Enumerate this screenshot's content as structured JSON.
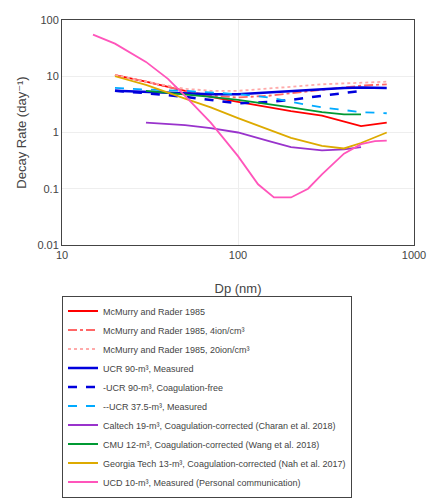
{
  "chart_data": {
    "type": "line",
    "xlabel": "Dp (nm)",
    "ylabel": "Decay Rate (day⁻¹)",
    "log": true,
    "xlim": [
      10,
      1000
    ],
    "ylim": [
      0.01,
      100
    ],
    "xticks": [
      10,
      100,
      1000
    ],
    "yticks": [
      0.01,
      0.1,
      1,
      10,
      100
    ],
    "grid": true,
    "legend": "bottom",
    "series": [
      {
        "name": "McMurry and Rader 1985",
        "color": "#ff0000",
        "line_style": "solid",
        "x": [
          20,
          30,
          50,
          70,
          100,
          150,
          200,
          300,
          500,
          700
        ],
        "values": [
          10.5,
          8.0,
          5.5,
          4.3,
          3.5,
          2.8,
          2.4,
          2.0,
          1.3,
          1.5
        ]
      },
      {
        "name": "McMurry and Rader 1985, 4ion/cm³",
        "color": "#ff6666",
        "line_style": "dashdot",
        "x": [
          20,
          30,
          50,
          70,
          100,
          150,
          200,
          300,
          500,
          700
        ],
        "values": [
          10.5,
          8.0,
          5.5,
          4.5,
          4.2,
          4.5,
          5.0,
          5.8,
          6.8,
          7.2
        ]
      },
      {
        "name": "McMurry and Rader 1985, 20ion/cm³",
        "color": "#ffaaaa",
        "line_style": "dotted",
        "x": [
          20,
          30,
          50,
          70,
          100,
          150,
          200,
          300,
          500,
          700
        ],
        "values": [
          10.5,
          8.0,
          6.0,
          5.5,
          5.5,
          6.0,
          6.5,
          7.2,
          7.8,
          8.0
        ]
      },
      {
        "name": "UCR 90-m³, Measured",
        "color": "#0000dd",
        "line_style": "solid",
        "x": [
          20,
          30,
          50,
          70,
          100,
          150,
          200,
          300,
          400,
          500,
          700
        ],
        "values": [
          5.5,
          5.3,
          5.0,
          4.8,
          4.8,
          5.2,
          5.5,
          6.0,
          6.2,
          6.3,
          6.2
        ]
      },
      {
        "name": "-UCR 90-m³, Coagulation-free",
        "color": "#0000dd",
        "line_style": "dashed",
        "x": [
          20,
          30,
          50,
          70,
          100,
          150,
          200,
          300,
          400,
          500
        ],
        "values": [
          5.5,
          5.0,
          4.3,
          3.8,
          3.3,
          3.5,
          3.8,
          4.5,
          5.0,
          5.5
        ]
      },
      {
        "name": "--UCR 37.5-m³, Measured",
        "color": "#00aaff",
        "line_style": "dashed",
        "x": [
          20,
          30,
          50,
          70,
          100,
          150,
          200,
          300,
          400,
          500,
          700
        ],
        "values": [
          6.2,
          5.8,
          5.5,
          5.2,
          4.8,
          4.2,
          3.5,
          2.8,
          2.5,
          2.3,
          2.2
        ]
      },
      {
        "name": "Caltech 19-m³, Coagulation-corrected (Charan et al. 2018)",
        "color": "#9933cc",
        "line_style": "solid",
        "x": [
          30,
          50,
          70,
          100,
          150,
          200,
          300,
          400,
          500
        ],
        "values": [
          1.5,
          1.35,
          1.2,
          1.0,
          0.7,
          0.55,
          0.48,
          0.5,
          0.55
        ]
      },
      {
        "name": "CMU 12-m³, Coagulation-corrected (Wang et al. 2018)",
        "color": "#009933",
        "line_style": "solid",
        "x": [
          30,
          50,
          70,
          100,
          150,
          200,
          300,
          400,
          500
        ],
        "values": [
          5.5,
          4.8,
          4.3,
          3.8,
          3.2,
          2.8,
          2.3,
          2.1,
          2.1
        ]
      },
      {
        "name": "Georgia Tech 13-m³, Coagulation-corrected (Nah et al. 2017)",
        "color": "#ddaa00",
        "line_style": "solid",
        "x": [
          20,
          30,
          50,
          70,
          100,
          150,
          200,
          300,
          400,
          500,
          700
        ],
        "values": [
          10.0,
          7.0,
          4.0,
          2.8,
          1.8,
          1.1,
          0.8,
          0.58,
          0.52,
          0.65,
          1.0
        ]
      },
      {
        "name": "UCD 10-m³, Measured (Personal communication)",
        "color": "#ff55bb",
        "line_style": "solid",
        "x": [
          15,
          20,
          30,
          40,
          50,
          60,
          70,
          80,
          100,
          130,
          160,
          200,
          250,
          300,
          350,
          400,
          500,
          600,
          700
        ],
        "values": [
          55,
          38,
          18,
          9.0,
          4.5,
          2.5,
          1.5,
          0.9,
          0.38,
          0.12,
          0.07,
          0.07,
          0.1,
          0.18,
          0.28,
          0.42,
          0.62,
          0.7,
          0.72
        ]
      }
    ]
  }
}
